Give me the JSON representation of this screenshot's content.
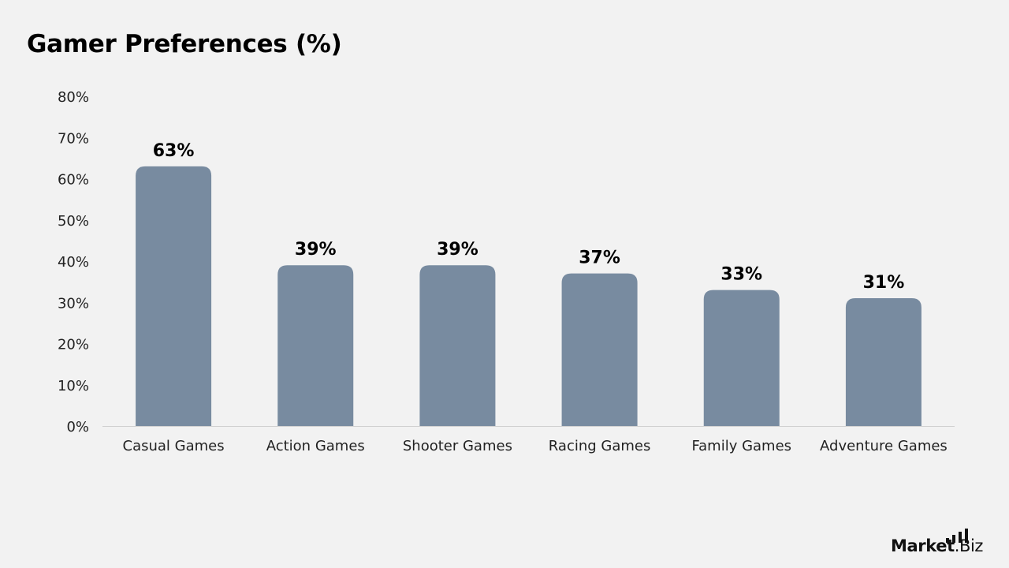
{
  "chart_data": {
    "type": "bar",
    "title": "Gamer Preferences (%)",
    "categories": [
      "Casual Games",
      "Action Games",
      "Shooter Games",
      "Racing Games",
      "Family Games",
      "Adventure Games"
    ],
    "values": [
      63,
      39,
      39,
      37,
      33,
      31
    ],
    "data_labels": [
      "63%",
      "39%",
      "39%",
      "37%",
      "33%",
      "31%"
    ],
    "ylim": [
      0,
      80
    ],
    "yticks": [
      0,
      10,
      20,
      30,
      40,
      50,
      60,
      70,
      80
    ],
    "ytick_labels": [
      "0%",
      "10%",
      "20%",
      "30%",
      "40%",
      "50%",
      "60%",
      "70%",
      "80%"
    ],
    "xlabel": "",
    "ylabel": "",
    "grid": false,
    "legend": "none",
    "bar_color": "#788ba0",
    "background_color": "#f2f2f2"
  },
  "brand": {
    "name_bold": "Market",
    "name_regular": ".Biz"
  }
}
